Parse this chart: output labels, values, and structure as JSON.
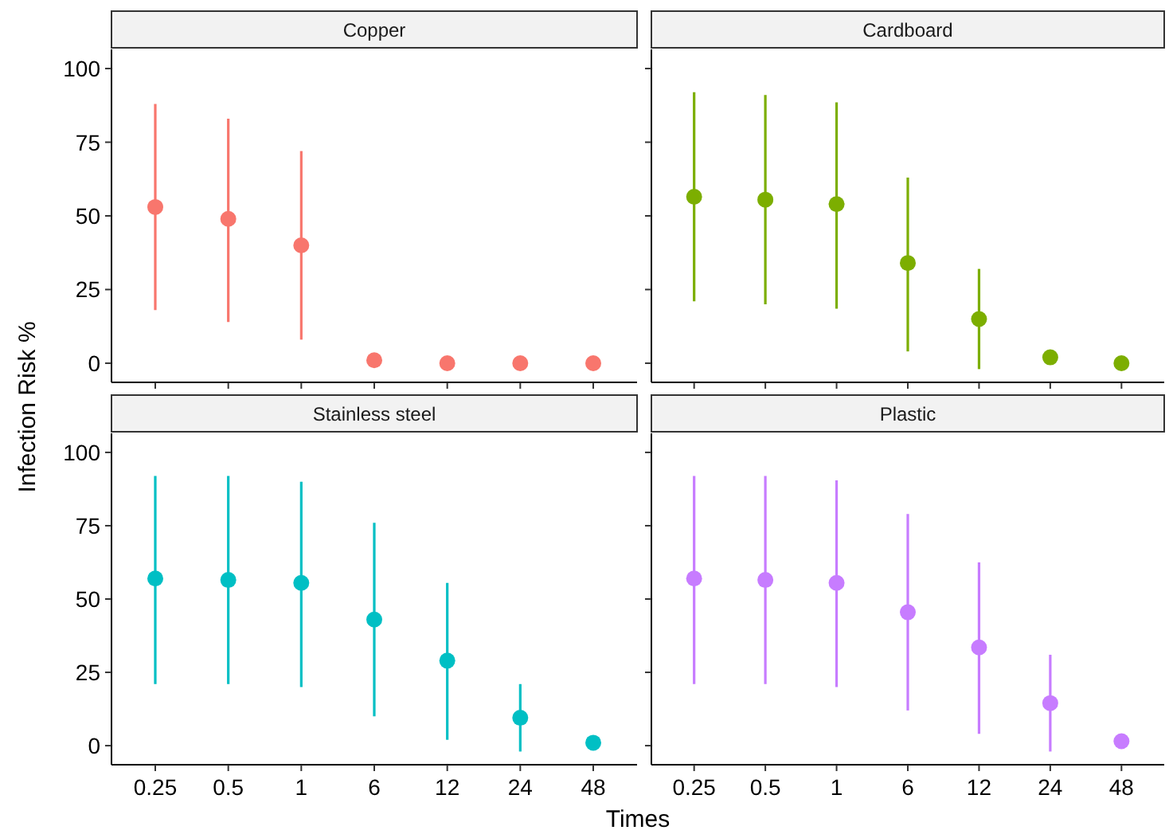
{
  "chart_data": [
    {
      "type": "scatter",
      "title": "Copper",
      "ylabel": "Infection Risk %",
      "categories": [
        "0.25",
        "0.5",
        "1",
        "6",
        "12",
        "24",
        "48"
      ],
      "values": [
        53,
        49,
        40,
        1,
        0,
        0,
        0
      ],
      "errors": [
        [
          18,
          88
        ],
        [
          14,
          83
        ],
        [
          8,
          72
        ],
        null,
        null,
        null,
        null
      ],
      "color": "#f8766d",
      "ylim": [
        -6.5,
        106.5
      ],
      "yticks": [
        0,
        25,
        50,
        75,
        100
      ],
      "tick_labels": "y",
      "marker": "circle",
      "grid": false
    },
    {
      "type": "scatter",
      "title": "Cardboard",
      "categories": [
        "0.25",
        "0.5",
        "1",
        "6",
        "12",
        "24",
        "48"
      ],
      "values": [
        56.5,
        55.5,
        54,
        34,
        15,
        2,
        0
      ],
      "errors": [
        [
          21,
          92
        ],
        [
          20,
          91
        ],
        [
          18.5,
          88.5
        ],
        [
          4,
          63
        ],
        [
          -2,
          32
        ],
        null,
        null
      ],
      "color": "#7cae00",
      "ylim": [
        -6.5,
        106.5
      ],
      "yticks": [
        0,
        25,
        50,
        75,
        100
      ],
      "tick_labels": false,
      "marker": "circle",
      "grid": false
    },
    {
      "type": "scatter",
      "title": "Stainless steel",
      "xlabel": "Times",
      "categories": [
        "0.25",
        "0.5",
        "1",
        "6",
        "12",
        "24",
        "48"
      ],
      "values": [
        57,
        56.5,
        55.5,
        43,
        29,
        9.5,
        1
      ],
      "errors": [
        [
          21,
          92
        ],
        [
          21,
          92
        ],
        [
          20,
          90
        ],
        [
          10,
          76
        ],
        [
          2,
          55.5
        ],
        [
          -2,
          21
        ],
        null
      ],
      "color": "#00bfc4",
      "ylim": [
        -6.5,
        106.5
      ],
      "yticks": [
        0,
        25,
        50,
        75,
        100
      ],
      "marker": "circle",
      "grid": false
    },
    {
      "type": "scatter",
      "title": "Plastic",
      "categories": [
        "0.25",
        "0.5",
        "1",
        "6",
        "12",
        "24",
        "48"
      ],
      "values": [
        57,
        56.5,
        55.5,
        45.5,
        33.5,
        14.5,
        1.5
      ],
      "errors": [
        [
          21,
          92
        ],
        [
          21,
          92
        ],
        [
          20,
          90.5
        ],
        [
          12,
          79
        ],
        [
          4,
          62.5
        ],
        [
          -2,
          31
        ],
        null
      ],
      "color": "#c77cff",
      "ylim": [
        -6.5,
        106.5
      ],
      "yticks": [
        0,
        25,
        50,
        75,
        100
      ],
      "tick_labels": "x",
      "marker": "circle",
      "grid": false
    }
  ]
}
